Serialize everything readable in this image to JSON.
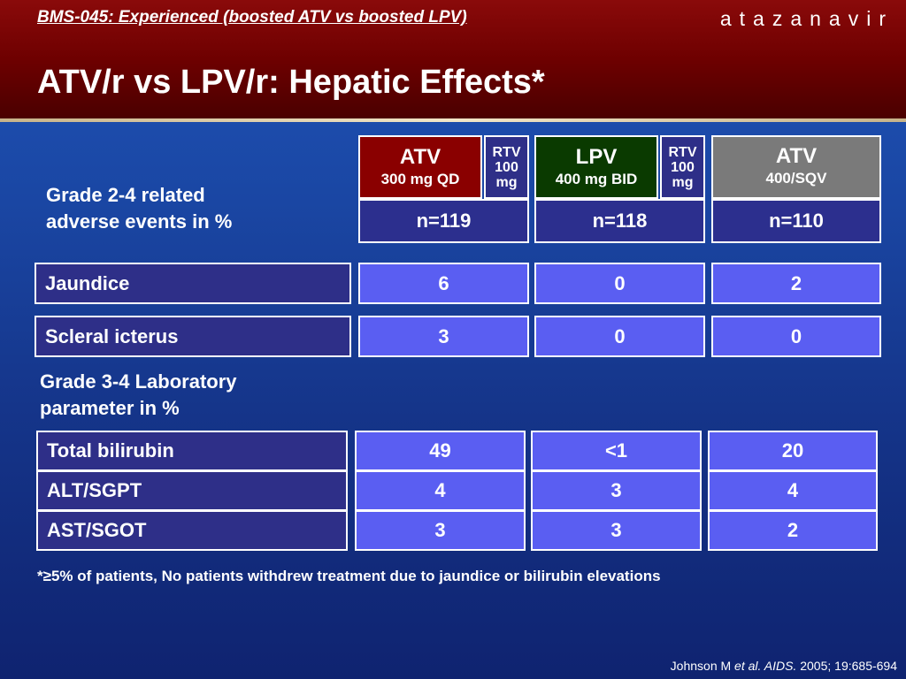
{
  "header": {
    "study": "BMS-045:  Experienced (boosted ATV vs boosted LPV)",
    "brand": "atazanavir",
    "title": "ATV/r vs LPV/r: Hepatic Effects*"
  },
  "columns": [
    {
      "name": "ATV",
      "dose": "300 mg QD",
      "rtv": [
        "RTV",
        "100",
        "mg"
      ],
      "n": "n=119"
    },
    {
      "name": "LPV",
      "dose": "400 mg BID",
      "rtv": [
        "RTV",
        "100",
        "mg"
      ],
      "n": "n=118"
    },
    {
      "name": "ATV",
      "dose": "400/SQV",
      "n": "n=110"
    }
  ],
  "section1_label": [
    "Grade 2-4 related",
    "adverse events in %"
  ],
  "section1_rows": [
    {
      "label": "Jaundice",
      "values": [
        "6",
        "0",
        "2"
      ]
    },
    {
      "label": "Scleral icterus",
      "values": [
        "3",
        "0",
        "0"
      ]
    }
  ],
  "section2_label": [
    "Grade 3-4 Laboratory",
    "parameter in %"
  ],
  "section2_rows": [
    {
      "label": "Total bilirubin",
      "values": [
        "49",
        "<1",
        "20"
      ]
    },
    {
      "label": "ALT/SGPT",
      "values": [
        "4",
        "3",
        "4"
      ]
    },
    {
      "label": "AST/SGOT",
      "values": [
        "3",
        "3",
        "2"
      ]
    }
  ],
  "footnote": "*≥5% of patients, No patients withdrew treatment due to jaundice or bilirubin elevations",
  "citation": {
    "authors": "Johnson M ",
    "etal": "et al.",
    "journal": " AIDS.",
    "ref": " 2005; 19:685-694"
  }
}
